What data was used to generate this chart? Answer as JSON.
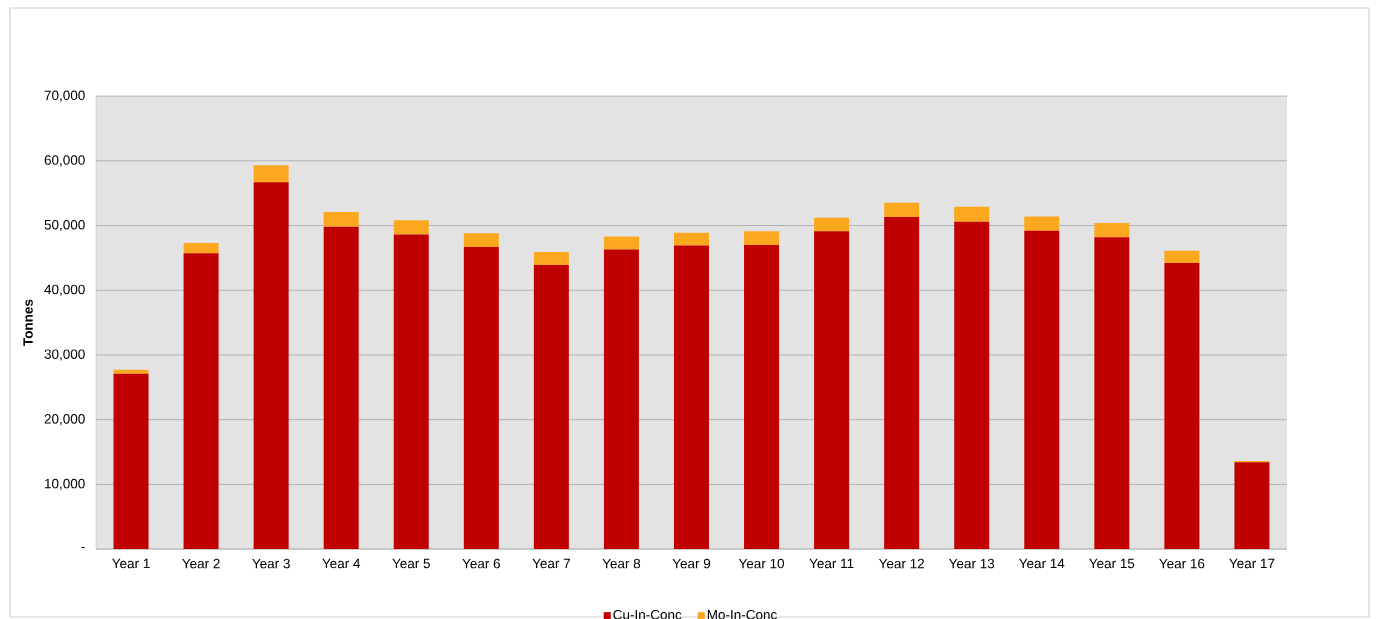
{
  "chart_data": {
    "type": "bar",
    "stacked": true,
    "ylabel": "Tonnes",
    "categories": [
      "Year 1",
      "Year 2",
      "Year 3",
      "Year 4",
      "Year 5",
      "Year 6",
      "Year 7",
      "Year 8",
      "Year 9",
      "Year 10",
      "Year 11",
      "Year 12",
      "Year 13",
      "Year 14",
      "Year 15",
      "Year 16",
      "Year 17"
    ],
    "series": [
      {
        "name": "Cu-In-Conc",
        "color": "#c00000",
        "values": [
          27100,
          45700,
          56700,
          49800,
          48600,
          46700,
          43900,
          46300,
          46900,
          47000,
          49100,
          51300,
          50600,
          49200,
          48200,
          44200,
          13400
        ]
      },
      {
        "name": "Mo-In-Conc",
        "color": "#fba81e",
        "values": [
          600,
          1600,
          2600,
          2300,
          2200,
          2100,
          2000,
          2000,
          2000,
          2100,
          2100,
          2200,
          2300,
          2200,
          2200,
          1900,
          200
        ]
      }
    ],
    "ylim": [
      0,
      70000
    ],
    "yticks": [
      {
        "value": 0,
        "label": "-"
      },
      {
        "value": 10000,
        "label": "10,000"
      },
      {
        "value": 20000,
        "label": "20,000"
      },
      {
        "value": 30000,
        "label": "30,000"
      },
      {
        "value": 40000,
        "label": "40,000"
      },
      {
        "value": 50000,
        "label": "50,000"
      },
      {
        "value": 60000,
        "label": "60,000"
      },
      {
        "value": 70000,
        "label": "70,000"
      }
    ],
    "grid": "y",
    "legend": "bottom"
  }
}
